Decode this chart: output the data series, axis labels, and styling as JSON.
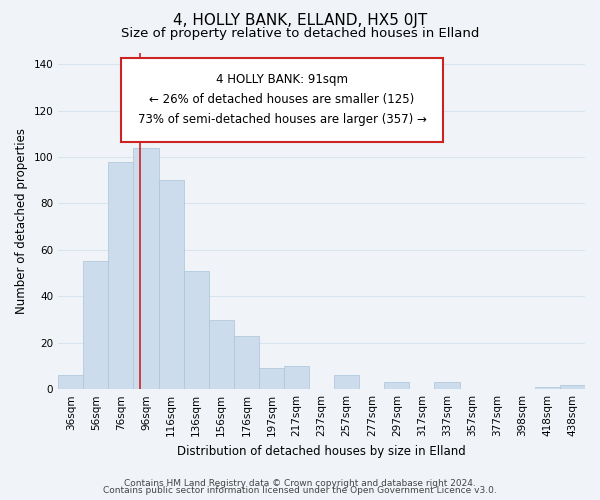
{
  "title": "4, HOLLY BANK, ELLAND, HX5 0JT",
  "subtitle": "Size of property relative to detached houses in Elland",
  "xlabel": "Distribution of detached houses by size in Elland",
  "ylabel": "Number of detached properties",
  "footer_line1": "Contains HM Land Registry data © Crown copyright and database right 2024.",
  "footer_line2": "Contains public sector information licensed under the Open Government Licence v3.0.",
  "bar_labels": [
    "36sqm",
    "56sqm",
    "76sqm",
    "96sqm",
    "116sqm",
    "136sqm",
    "156sqm",
    "176sqm",
    "197sqm",
    "217sqm",
    "237sqm",
    "257sqm",
    "277sqm",
    "297sqm",
    "317sqm",
    "337sqm",
    "357sqm",
    "377sqm",
    "398sqm",
    "418sqm",
    "438sqm"
  ],
  "bar_values": [
    6,
    55,
    98,
    104,
    90,
    51,
    30,
    23,
    9,
    10,
    0,
    6,
    0,
    3,
    0,
    3,
    0,
    0,
    0,
    1,
    2
  ],
  "bar_color": "#ccdcec",
  "bar_edge_color": "#aac4d8",
  "grid_color": "#d8e4ee",
  "ann_line1": "4 HOLLY BANK: 91sqm",
  "ann_line2": "← 26% of detached houses are smaller (125)",
  "ann_line3": "73% of semi-detached houses are larger (357) →",
  "red_line_bar_index": 2.75,
  "ylim_max": 145,
  "yticks": [
    0,
    20,
    40,
    60,
    80,
    100,
    120,
    140
  ],
  "background_color": "#f0f4f8",
  "title_fontsize": 11,
  "subtitle_fontsize": 9.5,
  "axis_label_fontsize": 8.5,
  "tick_fontsize": 7.5,
  "annotation_fontsize": 8.5,
  "footer_fontsize": 6.5
}
